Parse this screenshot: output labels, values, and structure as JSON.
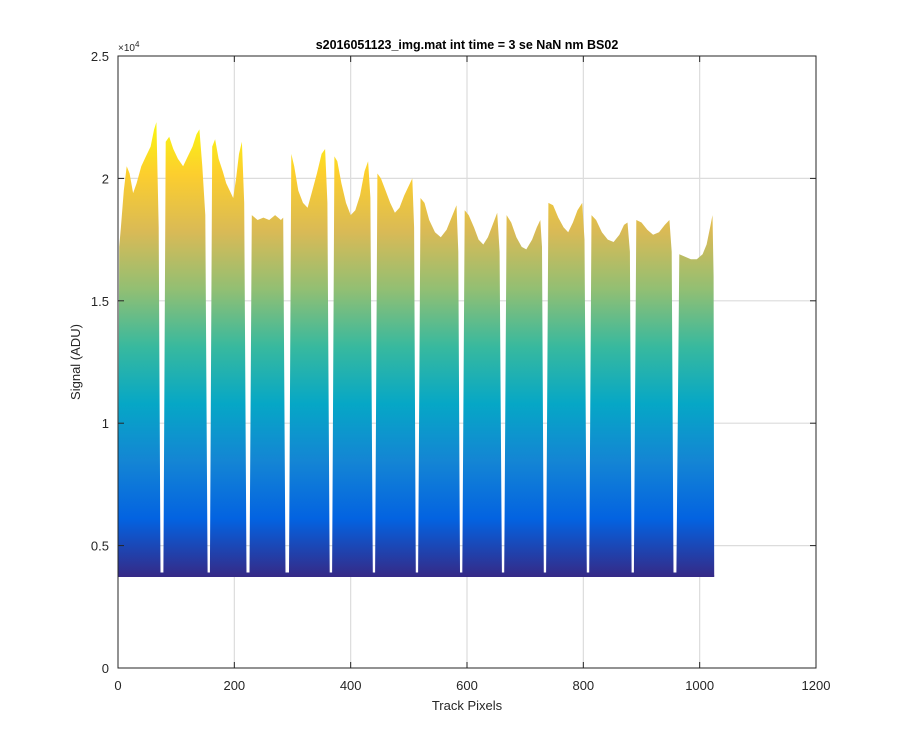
{
  "chart_data": {
    "type": "area",
    "title": "s2016051123_img.mat int time = 3 se  NaN nm BS02",
    "xlabel": "Track Pixels",
    "ylabel": "Signal (ADU)",
    "xlim": [
      0,
      1200
    ],
    "ylim": [
      0,
      25000
    ],
    "y_multiplier_label": "×10",
    "y_multiplier_exponent": "4",
    "x_ticks": [
      0,
      200,
      400,
      600,
      800,
      1000,
      1200
    ],
    "x_tick_labels": [
      "0",
      "200",
      "400",
      "600",
      "800",
      "1000",
      "1200"
    ],
    "y_ticks": [
      0,
      5000,
      10000,
      15000,
      20000,
      25000
    ],
    "y_tick_labels": [
      "0",
      "0.5",
      "1",
      "1.5",
      "2",
      "2.5"
    ],
    "grid": true,
    "colormap": [
      "#352a87",
      "#0363e1",
      "#1485d4",
      "#06a7c6",
      "#38b99e",
      "#92bf73",
      "#d9ba56",
      "#fcce2e",
      "#f9fb0e"
    ],
    "baseline": 3750,
    "series": [
      {
        "values": [
          [
            0,
            3800
          ],
          [
            2,
            17200
          ],
          [
            5,
            18000
          ],
          [
            10,
            19500
          ],
          [
            15,
            20500
          ],
          [
            20,
            20200
          ],
          [
            26,
            19400
          ],
          [
            32,
            19800
          ],
          [
            40,
            20500
          ],
          [
            48,
            20900
          ],
          [
            56,
            21300
          ],
          [
            62,
            22000
          ],
          [
            66,
            22300
          ],
          [
            70,
            18000
          ],
          [
            73,
            3900
          ],
          [
            78,
            3900
          ],
          [
            82,
            21500
          ],
          [
            88,
            21700
          ],
          [
            95,
            21200
          ],
          [
            103,
            20800
          ],
          [
            112,
            20500
          ],
          [
            120,
            20900
          ],
          [
            128,
            21300
          ],
          [
            135,
            21800
          ],
          [
            140,
            22000
          ],
          [
            145,
            20500
          ],
          [
            150,
            18500
          ],
          [
            154,
            3900
          ],
          [
            158,
            3900
          ],
          [
            162,
            21300
          ],
          [
            167,
            21600
          ],
          [
            173,
            20800
          ],
          [
            180,
            20300
          ],
          [
            186,
            19800
          ],
          [
            192,
            19500
          ],
          [
            198,
            19200
          ],
          [
            203,
            20000
          ],
          [
            208,
            21000
          ],
          [
            213,
            21500
          ],
          [
            217,
            19000
          ],
          [
            221,
            3900
          ],
          [
            226,
            3900
          ],
          [
            230,
            18500
          ],
          [
            240,
            18300
          ],
          [
            250,
            18400
          ],
          [
            260,
            18300
          ],
          [
            270,
            18500
          ],
          [
            280,
            18300
          ],
          [
            284,
            18400
          ],
          [
            288,
            3900
          ],
          [
            294,
            3900
          ],
          [
            298,
            21000
          ],
          [
            303,
            20500
          ],
          [
            310,
            19500
          ],
          [
            318,
            19000
          ],
          [
            326,
            18800
          ],
          [
            334,
            19500
          ],
          [
            342,
            20200
          ],
          [
            350,
            21000
          ],
          [
            356,
            21200
          ],
          [
            360,
            19000
          ],
          [
            364,
            3900
          ],
          [
            368,
            3900
          ],
          [
            372,
            20900
          ],
          [
            377,
            20700
          ],
          [
            384,
            19800
          ],
          [
            392,
            19000
          ],
          [
            400,
            18500
          ],
          [
            408,
            18700
          ],
          [
            416,
            19300
          ],
          [
            424,
            20300
          ],
          [
            430,
            20700
          ],
          [
            434,
            19200
          ],
          [
            438,
            3900
          ],
          [
            442,
            3900
          ],
          [
            446,
            20200
          ],
          [
            452,
            20000
          ],
          [
            460,
            19500
          ],
          [
            468,
            19000
          ],
          [
            476,
            18600
          ],
          [
            484,
            18800
          ],
          [
            492,
            19300
          ],
          [
            500,
            19700
          ],
          [
            506,
            20000
          ],
          [
            509,
            18000
          ],
          [
            512,
            3900
          ],
          [
            516,
            3900
          ],
          [
            520,
            19200
          ],
          [
            527,
            19000
          ],
          [
            535,
            18300
          ],
          [
            545,
            17800
          ],
          [
            555,
            17600
          ],
          [
            565,
            17900
          ],
          [
            575,
            18500
          ],
          [
            582,
            18900
          ],
          [
            585,
            17000
          ],
          [
            588,
            3900
          ],
          [
            592,
            3900
          ],
          [
            596,
            18700
          ],
          [
            603,
            18500
          ],
          [
            612,
            18000
          ],
          [
            620,
            17500
          ],
          [
            628,
            17300
          ],
          [
            636,
            17600
          ],
          [
            644,
            18100
          ],
          [
            652,
            18600
          ],
          [
            656,
            17000
          ],
          [
            660,
            3900
          ],
          [
            664,
            3900
          ],
          [
            668,
            18500
          ],
          [
            676,
            18200
          ],
          [
            685,
            17600
          ],
          [
            694,
            17200
          ],
          [
            702,
            17100
          ],
          [
            712,
            17500
          ],
          [
            720,
            18000
          ],
          [
            726,
            18300
          ],
          [
            729,
            17200
          ],
          [
            732,
            3900
          ],
          [
            736,
            3900
          ],
          [
            740,
            19000
          ],
          [
            748,
            18900
          ],
          [
            757,
            18400
          ],
          [
            766,
            18000
          ],
          [
            774,
            17800
          ],
          [
            782,
            18200
          ],
          [
            790,
            18700
          ],
          [
            798,
            19000
          ],
          [
            802,
            17500
          ],
          [
            806,
            3900
          ],
          [
            810,
            3900
          ],
          [
            814,
            18500
          ],
          [
            822,
            18300
          ],
          [
            832,
            17800
          ],
          [
            842,
            17500
          ],
          [
            852,
            17400
          ],
          [
            862,
            17700
          ],
          [
            870,
            18100
          ],
          [
            876,
            18200
          ],
          [
            880,
            17000
          ],
          [
            883,
            3900
          ],
          [
            887,
            3900
          ],
          [
            891,
            18300
          ],
          [
            900,
            18200
          ],
          [
            910,
            17900
          ],
          [
            920,
            17700
          ],
          [
            930,
            17800
          ],
          [
            940,
            18100
          ],
          [
            948,
            18300
          ],
          [
            952,
            17000
          ],
          [
            955,
            3900
          ],
          [
            960,
            3900
          ],
          [
            965,
            16900
          ],
          [
            975,
            16800
          ],
          [
            985,
            16700
          ],
          [
            995,
            16700
          ],
          [
            1005,
            16900
          ],
          [
            1012,
            17300
          ],
          [
            1018,
            18000
          ],
          [
            1022,
            18500
          ],
          [
            1024,
            16000
          ],
          [
            1025,
            3800
          ]
        ]
      }
    ]
  }
}
